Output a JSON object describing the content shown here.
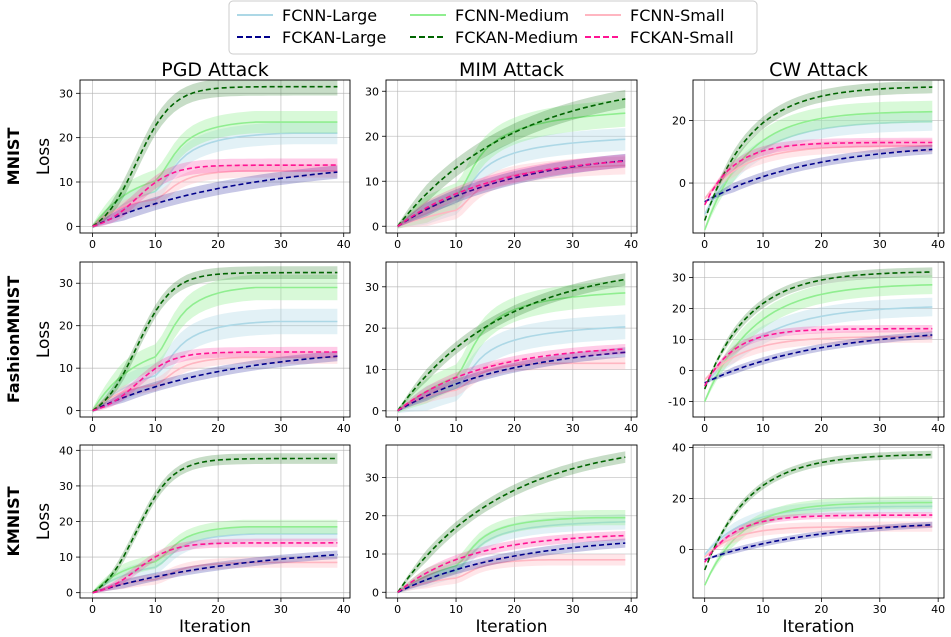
{
  "chart_data": {
    "type": "line",
    "legend": {
      "placement": "top-center",
      "entries": [
        {
          "label": "FCNN-Large",
          "color": "#add8e6",
          "dash": "solid"
        },
        {
          "label": "FCNN-Medium",
          "color": "#90ee90",
          "dash": "solid"
        },
        {
          "label": "FCNN-Small",
          "color": "#ffb6c1",
          "dash": "solid"
        },
        {
          "label": "FCKAN-Large",
          "color": "#00008b",
          "dash": "dashed"
        },
        {
          "label": "FCKAN-Medium",
          "color": "#006400",
          "dash": "dashed"
        },
        {
          "label": "FCKAN-Small",
          "color": "#ff1493",
          "dash": "dashed"
        }
      ]
    },
    "column_titles": [
      "PGD Attack",
      "MIM Attack",
      "CW Attack"
    ],
    "row_labels": [
      "MNIST",
      "FashionMNIST",
      "KMNIST"
    ],
    "xlabel": "Iteration",
    "ylabel": "Loss",
    "grid": true,
    "xlim": [
      -2,
      41
    ],
    "xticks": [
      0,
      10,
      20,
      30,
      40
    ],
    "panels": [
      {
        "row": 0,
        "col": 0,
        "ylim": [
          -1.5,
          33
        ],
        "yticks": [
          0,
          10,
          20,
          30
        ],
        "series": {
          "FCNN-Large": {
            "start": 0,
            "end": 21,
            "rate": 0.11,
            "shape": "step",
            "band": 2.5
          },
          "FCNN-Medium": {
            "start": 0,
            "end": 23.5,
            "rate": 0.15,
            "shape": "step",
            "band": 2.5
          },
          "FCNN-Small": {
            "start": 0,
            "end": 12.5,
            "rate": 0.2,
            "shape": "step",
            "band": 1.5
          },
          "FCKAN-Large": {
            "start": 0,
            "end": 15.5,
            "rate": 0.04,
            "shape": "exp",
            "band": 1.5
          },
          "FCKAN-Medium": {
            "start": 0,
            "end": 31.5,
            "rate": 0.12,
            "shape": "sig",
            "band": 2.0
          },
          "FCKAN-Small": {
            "start": 0,
            "end": 13.8,
            "rate": 0.2,
            "shape": "sig",
            "band": 1.5
          }
        }
      },
      {
        "row": 0,
        "col": 1,
        "ylim": [
          -1.5,
          32.5
        ],
        "yticks": [
          0,
          10,
          20,
          30
        ],
        "series": {
          "FCNN-Large": {
            "start": 0,
            "end": 20,
            "rate": 0.06,
            "shape": "step",
            "band": 2.5
          },
          "FCNN-Medium": {
            "start": 0,
            "end": 26,
            "rate": 0.06,
            "shape": "step",
            "band": 3.0
          },
          "FCNN-Small": {
            "start": 0,
            "end": 14,
            "rate": 0.06,
            "shape": "step",
            "band": 2.0
          },
          "FCKAN-Large": {
            "start": 0,
            "end": 17,
            "rate": 0.05,
            "shape": "exp",
            "band": 1.5
          },
          "FCKAN-Medium": {
            "start": 0,
            "end": 33,
            "rate": 0.05,
            "shape": "exp",
            "band": 2.0
          },
          "FCKAN-Small": {
            "start": 0,
            "end": 16,
            "rate": 0.06,
            "shape": "exp",
            "band": 1.5
          }
        }
      },
      {
        "row": 0,
        "col": 2,
        "ylim": [
          -16,
          33
        ],
        "yticks": [
          0,
          20
        ],
        "series": {
          "FCNN-Large": {
            "start": -10,
            "end": 20,
            "rate": 0.12,
            "shape": "exp",
            "band": 3.0
          },
          "FCNN-Medium": {
            "start": -15,
            "end": 23,
            "rate": 0.14,
            "shape": "exp",
            "band": 3.5
          },
          "FCNN-Small": {
            "start": -5,
            "end": 12,
            "rate": 0.15,
            "shape": "exp",
            "band": 2.0
          },
          "FCKAN-Large": {
            "start": -6,
            "end": 13,
            "rate": 0.055,
            "shape": "exp",
            "band": 1.5
          },
          "FCKAN-Medium": {
            "start": -12,
            "end": 31,
            "rate": 0.13,
            "shape": "exp",
            "band": 2.0
          },
          "FCKAN-Small": {
            "start": -7,
            "end": 13,
            "rate": 0.2,
            "shape": "exp",
            "band": 1.5
          }
        }
      },
      {
        "row": 1,
        "col": 0,
        "ylim": [
          -1.5,
          35
        ],
        "yticks": [
          0,
          10,
          20,
          30
        ],
        "series": {
          "FCNN-Large": {
            "start": 0,
            "end": 21,
            "rate": 0.12,
            "shape": "step",
            "band": 3.0
          },
          "FCNN-Medium": {
            "start": 0,
            "end": 29,
            "rate": 0.15,
            "shape": "step",
            "band": 3.0
          },
          "FCNN-Small": {
            "start": 0,
            "end": 12.5,
            "rate": 0.2,
            "shape": "step",
            "band": 1.5
          },
          "FCKAN-Large": {
            "start": 0,
            "end": 15.5,
            "rate": 0.045,
            "shape": "exp",
            "band": 1.2
          },
          "FCKAN-Medium": {
            "start": 0,
            "end": 32.5,
            "rate": 0.13,
            "shape": "sig",
            "band": 1.5
          },
          "FCKAN-Small": {
            "start": 0,
            "end": 13.8,
            "rate": 0.2,
            "shape": "sig",
            "band": 1.2
          }
        }
      },
      {
        "row": 1,
        "col": 1,
        "ylim": [
          -1.5,
          36
        ],
        "yticks": [
          0,
          10,
          20,
          30
        ],
        "series": {
          "FCNN-Large": {
            "start": 0,
            "end": 21,
            "rate": 0.06,
            "shape": "step",
            "band": 3.0
          },
          "FCNN-Medium": {
            "start": 0,
            "end": 29,
            "rate": 0.07,
            "shape": "step",
            "band": 3.0
          },
          "FCNN-Small": {
            "start": 0,
            "end": 11.5,
            "rate": 0.15,
            "shape": "step",
            "band": 1.5
          },
          "FCKAN-Large": {
            "start": 0,
            "end": 16.5,
            "rate": 0.05,
            "shape": "exp",
            "band": 1.2
          },
          "FCKAN-Medium": {
            "start": 0,
            "end": 36,
            "rate": 0.055,
            "shape": "exp",
            "band": 1.5
          },
          "FCKAN-Small": {
            "start": 0,
            "end": 16,
            "rate": 0.07,
            "shape": "exp",
            "band": 1.2
          }
        }
      },
      {
        "row": 1,
        "col": 2,
        "ylim": [
          -15,
          35
        ],
        "yticks": [
          -10,
          0,
          10,
          20,
          30
        ],
        "series": {
          "FCNN-Large": {
            "start": -5,
            "end": 21,
            "rate": 0.1,
            "shape": "exp",
            "band": 3.0
          },
          "FCNN-Medium": {
            "start": -10,
            "end": 28,
            "rate": 0.12,
            "shape": "exp",
            "band": 3.0
          },
          "FCNN-Small": {
            "start": -3,
            "end": 11,
            "rate": 0.15,
            "shape": "exp",
            "band": 2.0
          },
          "FCKAN-Large": {
            "start": -4,
            "end": 14,
            "rate": 0.05,
            "shape": "exp",
            "band": 1.2
          },
          "FCKAN-Medium": {
            "start": -6,
            "end": 32,
            "rate": 0.13,
            "shape": "exp",
            "band": 1.5
          },
          "FCKAN-Small": {
            "start": -5,
            "end": 13.5,
            "rate": 0.2,
            "shape": "exp",
            "band": 1.2
          }
        }
      },
      {
        "row": 2,
        "col": 0,
        "ylim": [
          -1.5,
          41.5
        ],
        "yticks": [
          0,
          10,
          20,
          30,
          40
        ],
        "series": {
          "FCNN-Large": {
            "start": 0,
            "end": 16.5,
            "rate": 0.15,
            "shape": "step",
            "band": 2.0
          },
          "FCNN-Medium": {
            "start": 0,
            "end": 18.5,
            "rate": 0.18,
            "shape": "step",
            "band": 2.0
          },
          "FCNN-Small": {
            "start": 0,
            "end": 8.5,
            "rate": 0.15,
            "shape": "step",
            "band": 1.5
          },
          "FCKAN-Large": {
            "start": 0,
            "end": 13.5,
            "rate": 0.04,
            "shape": "exp",
            "band": 1.2
          },
          "FCKAN-Medium": {
            "start": 0,
            "end": 37.7,
            "rate": 0.13,
            "shape": "sig",
            "band": 1.5
          },
          "FCKAN-Small": {
            "start": 0,
            "end": 14,
            "rate": 0.2,
            "shape": "sig",
            "band": 1.2
          }
        }
      },
      {
        "row": 2,
        "col": 1,
        "ylim": [
          -1.5,
          38.5
        ],
        "yticks": [
          0,
          10,
          20,
          30
        ],
        "series": {
          "FCNN-Large": {
            "start": 0,
            "end": 18.5,
            "rate": 0.08,
            "shape": "step",
            "band": 2.0
          },
          "FCNN-Medium": {
            "start": 0,
            "end": 19.5,
            "rate": 0.1,
            "shape": "step",
            "band": 2.0
          },
          "FCNN-Small": {
            "start": 0,
            "end": 8.5,
            "rate": 0.15,
            "shape": "step",
            "band": 1.5
          },
          "FCKAN-Large": {
            "start": 0,
            "end": 15,
            "rate": 0.05,
            "shape": "exp",
            "band": 1.2
          },
          "FCKAN-Medium": {
            "start": 0,
            "end": 40,
            "rate": 0.055,
            "shape": "exp",
            "band": 1.5
          },
          "FCKAN-Small": {
            "start": 0,
            "end": 15.5,
            "rate": 0.08,
            "shape": "exp",
            "band": 1.2
          }
        }
      },
      {
        "row": 2,
        "col": 2,
        "ylim": [
          -19,
          41
        ],
        "yticks": [
          0,
          20,
          40
        ],
        "series": {
          "FCNN-Large": {
            "start": -2,
            "end": 17,
            "rate": 0.15,
            "shape": "exp",
            "band": 2.5
          },
          "FCNN-Medium": {
            "start": -14,
            "end": 18.5,
            "rate": 0.16,
            "shape": "exp",
            "band": 2.5
          },
          "FCNN-Small": {
            "start": -3,
            "end": 9,
            "rate": 0.2,
            "shape": "exp",
            "band": 2.0
          },
          "FCKAN-Large": {
            "start": -4,
            "end": 12,
            "rate": 0.05,
            "shape": "exp",
            "band": 1.2
          },
          "FCKAN-Medium": {
            "start": -8,
            "end": 37.5,
            "rate": 0.13,
            "shape": "exp",
            "band": 1.5
          },
          "FCKAN-Small": {
            "start": -5,
            "end": 13.5,
            "rate": 0.2,
            "shape": "exp",
            "band": 1.2
          }
        }
      }
    ]
  }
}
